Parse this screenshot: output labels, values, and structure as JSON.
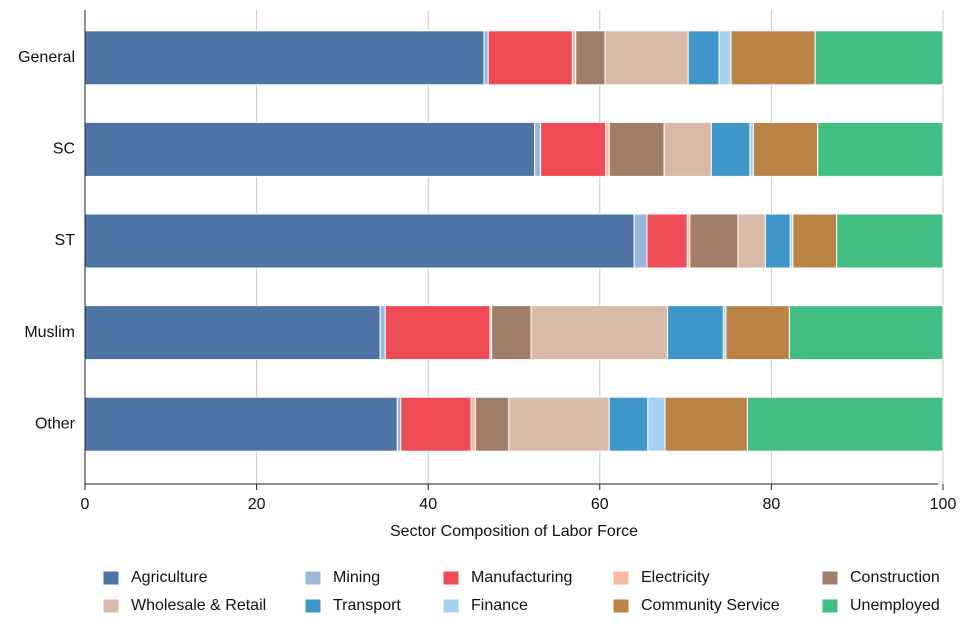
{
  "chart_data": {
    "type": "stacked-barh",
    "xlabel": "Sector Composition of Labor Force",
    "categories": [
      "General",
      "SC",
      "ST",
      "Muslim",
      "Other"
    ],
    "series": [
      {
        "name": "Agriculture",
        "color": "#4e74a3",
        "values": [
          46.5,
          52.4,
          64.0,
          34.4,
          36.4
        ]
      },
      {
        "name": "Mining",
        "color": "#9bb7d9",
        "values": [
          0.5,
          0.7,
          1.5,
          0.6,
          0.4
        ]
      },
      {
        "name": "Manufacturing",
        "color": "#ef4b55",
        "values": [
          9.8,
          7.6,
          4.7,
          12.2,
          8.2
        ]
      },
      {
        "name": "Electricity",
        "color": "#fbb8a0",
        "values": [
          0.4,
          0.4,
          0.3,
          0.2,
          0.5
        ]
      },
      {
        "name": "Construction",
        "color": "#a07d67",
        "values": [
          3.4,
          6.4,
          5.6,
          4.6,
          3.9
        ]
      },
      {
        "name": "Wholesale & Retail",
        "color": "#d9b9a8",
        "values": [
          9.7,
          5.5,
          3.2,
          15.9,
          11.7
        ]
      },
      {
        "name": "Transport",
        "color": "#3e97c8",
        "values": [
          3.6,
          4.5,
          2.9,
          6.5,
          4.5
        ]
      },
      {
        "name": "Finance",
        "color": "#a3d3ef",
        "values": [
          1.4,
          0.4,
          0.3,
          0.3,
          2.0
        ]
      },
      {
        "name": "Community Service",
        "color": "#bb8447",
        "values": [
          9.8,
          7.5,
          5.1,
          7.4,
          9.6
        ]
      },
      {
        "name": "Unemployed",
        "color": "#42be82",
        "values": [
          14.9,
          14.6,
          12.4,
          17.9,
          22.8
        ]
      }
    ],
    "xlim": [
      0,
      100
    ],
    "xticks": [
      0,
      20,
      40,
      60,
      80,
      100
    ],
    "grid": true
  }
}
